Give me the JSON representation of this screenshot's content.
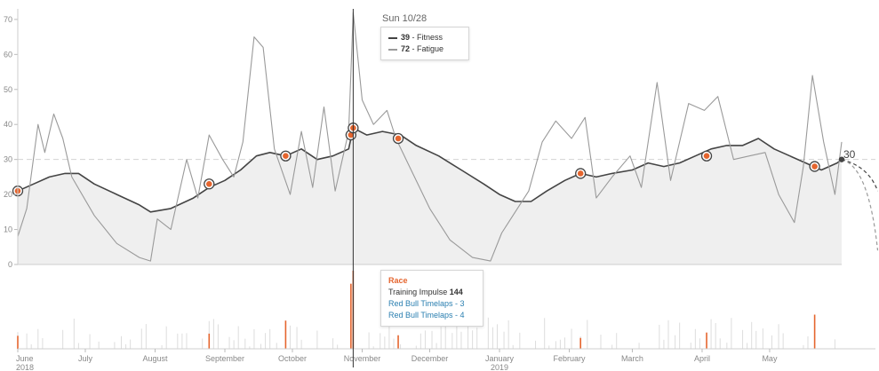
{
  "chart_data": {
    "type": "line",
    "hover_date": "Sun 10/28",
    "y_ticks": [
      0,
      10,
      20,
      30,
      40,
      50,
      60,
      70
    ],
    "ylim": [
      0,
      72
    ],
    "x_ticks": [
      {
        "label": "June",
        "sublabel": "2018",
        "date": "2018-06-01"
      },
      {
        "label": "July",
        "sublabel": "",
        "date": "2018-07-01"
      },
      {
        "label": "August",
        "sublabel": "",
        "date": "2018-08-01"
      },
      {
        "label": "September",
        "sublabel": "",
        "date": "2018-09-01"
      },
      {
        "label": "October",
        "sublabel": "",
        "date": "2018-10-01"
      },
      {
        "label": "November",
        "sublabel": "",
        "date": "2018-11-01"
      },
      {
        "label": "December",
        "sublabel": "",
        "date": "2018-12-01"
      },
      {
        "label": "January",
        "sublabel": "2019",
        "date": "2019-01-01"
      },
      {
        "label": "February",
        "sublabel": "",
        "date": "2019-02-01"
      },
      {
        "label": "March",
        "sublabel": "",
        "date": "2019-03-01"
      },
      {
        "label": "April",
        "sublabel": "",
        "date": "2019-04-01"
      },
      {
        "label": "May",
        "sublabel": "",
        "date": "2019-05-01"
      }
    ],
    "reference_line": {
      "value": 30,
      "label": "30"
    },
    "series": [
      {
        "name": "Fitness",
        "color": "#444444",
        "points": [
          [
            "2018-06-01",
            21
          ],
          [
            "2018-06-08",
            23
          ],
          [
            "2018-06-15",
            25
          ],
          [
            "2018-06-22",
            26
          ],
          [
            "2018-06-28",
            26
          ],
          [
            "2018-07-05",
            23
          ],
          [
            "2018-07-15",
            20
          ],
          [
            "2018-07-25",
            17
          ],
          [
            "2018-07-30",
            15
          ],
          [
            "2018-08-08",
            16
          ],
          [
            "2018-08-18",
            19
          ],
          [
            "2018-08-25",
            22
          ],
          [
            "2018-09-01",
            24
          ],
          [
            "2018-09-08",
            27
          ],
          [
            "2018-09-15",
            31
          ],
          [
            "2018-09-21",
            32
          ],
          [
            "2018-09-28",
            31
          ],
          [
            "2018-10-05",
            33
          ],
          [
            "2018-10-12",
            30
          ],
          [
            "2018-10-19",
            31
          ],
          [
            "2018-10-26",
            33
          ],
          [
            "2018-10-28",
            39
          ],
          [
            "2018-11-03",
            37
          ],
          [
            "2018-11-10",
            38
          ],
          [
            "2018-11-18",
            37
          ],
          [
            "2018-11-25",
            34
          ],
          [
            "2018-12-05",
            31
          ],
          [
            "2018-12-15",
            27
          ],
          [
            "2018-12-25",
            23
          ],
          [
            "2019-01-01",
            20
          ],
          [
            "2019-01-08",
            18
          ],
          [
            "2019-01-15",
            18
          ],
          [
            "2019-01-22",
            21
          ],
          [
            "2019-01-30",
            24
          ],
          [
            "2019-02-06",
            26
          ],
          [
            "2019-02-13",
            25
          ],
          [
            "2019-02-20",
            26
          ],
          [
            "2019-03-01",
            27
          ],
          [
            "2019-03-08",
            29
          ],
          [
            "2019-03-15",
            28
          ],
          [
            "2019-03-22",
            29
          ],
          [
            "2019-03-29",
            31
          ],
          [
            "2019-04-05",
            33
          ],
          [
            "2019-04-12",
            34
          ],
          [
            "2019-04-19",
            34
          ],
          [
            "2019-04-26",
            36
          ],
          [
            "2019-05-03",
            33
          ],
          [
            "2019-05-10",
            31
          ],
          [
            "2019-05-17",
            29
          ],
          [
            "2019-05-24",
            27
          ],
          [
            "2019-05-31",
            29
          ],
          [
            "2019-06-02",
            30
          ]
        ],
        "projection": [
          [
            "2019-06-02",
            30
          ],
          [
            "2019-06-18",
            21
          ]
        ]
      },
      {
        "name": "Fatigue",
        "color": "#9a9a9a",
        "points": [
          [
            "2018-06-01",
            8
          ],
          [
            "2018-06-05",
            16
          ],
          [
            "2018-06-10",
            40
          ],
          [
            "2018-06-13",
            32
          ],
          [
            "2018-06-17",
            43
          ],
          [
            "2018-06-21",
            36
          ],
          [
            "2018-06-25",
            25
          ],
          [
            "2018-07-05",
            14
          ],
          [
            "2018-07-15",
            6
          ],
          [
            "2018-07-25",
            2
          ],
          [
            "2018-07-30",
            1
          ],
          [
            "2018-08-02",
            13
          ],
          [
            "2018-08-08",
            10
          ],
          [
            "2018-08-15",
            30
          ],
          [
            "2018-08-20",
            19
          ],
          [
            "2018-08-25",
            37
          ],
          [
            "2018-08-31",
            30
          ],
          [
            "2018-09-05",
            25
          ],
          [
            "2018-09-09",
            35
          ],
          [
            "2018-09-14",
            65
          ],
          [
            "2018-09-18",
            62
          ],
          [
            "2018-09-23",
            33
          ],
          [
            "2018-09-30",
            20
          ],
          [
            "2018-10-05",
            38
          ],
          [
            "2018-10-10",
            22
          ],
          [
            "2018-10-15",
            45
          ],
          [
            "2018-10-20",
            21
          ],
          [
            "2018-10-26",
            38
          ],
          [
            "2018-10-28",
            72
          ],
          [
            "2018-11-01",
            47
          ],
          [
            "2018-11-06",
            40
          ],
          [
            "2018-11-12",
            44
          ],
          [
            "2018-11-16",
            36
          ],
          [
            "2018-11-22",
            28
          ],
          [
            "2018-12-01",
            16
          ],
          [
            "2018-12-10",
            7
          ],
          [
            "2018-12-20",
            2
          ],
          [
            "2018-12-28",
            1
          ],
          [
            "2019-01-02",
            9
          ],
          [
            "2019-01-08",
            15
          ],
          [
            "2019-01-14",
            21
          ],
          [
            "2019-01-20",
            35
          ],
          [
            "2019-01-26",
            41
          ],
          [
            "2019-02-02",
            36
          ],
          [
            "2019-02-08",
            42
          ],
          [
            "2019-02-13",
            19
          ],
          [
            "2019-02-20",
            25
          ],
          [
            "2019-02-28",
            31
          ],
          [
            "2019-03-05",
            22
          ],
          [
            "2019-03-12",
            52
          ],
          [
            "2019-03-18",
            24
          ],
          [
            "2019-03-26",
            46
          ],
          [
            "2019-04-02",
            44
          ],
          [
            "2019-04-08",
            48
          ],
          [
            "2019-04-15",
            30
          ],
          [
            "2019-04-22",
            31
          ],
          [
            "2019-04-29",
            32
          ],
          [
            "2019-05-05",
            20
          ],
          [
            "2019-05-12",
            12
          ],
          [
            "2019-05-16",
            28
          ],
          [
            "2019-05-20",
            54
          ],
          [
            "2019-05-25",
            35
          ],
          [
            "2019-05-30",
            20
          ],
          [
            "2019-06-02",
            35
          ]
        ],
        "projection": [
          [
            "2019-06-02",
            30
          ],
          [
            "2019-06-18",
            4
          ]
        ]
      }
    ],
    "race_markers": [
      {
        "date": "2018-06-01",
        "value": 21
      },
      {
        "date": "2018-08-25",
        "value": 23
      },
      {
        "date": "2018-09-28",
        "value": 31
      },
      {
        "date": "2018-10-27",
        "value": 37
      },
      {
        "date": "2018-10-28",
        "value": 39
      },
      {
        "date": "2018-11-17",
        "value": 36
      },
      {
        "date": "2019-02-06",
        "value": 26
      },
      {
        "date": "2019-04-03",
        "value": 31
      },
      {
        "date": "2019-05-21",
        "value": 28
      }
    ],
    "impulse_bars": [
      {
        "date": "2018-06-01",
        "value": 24,
        "race": true
      },
      {
        "date": "2018-08-25",
        "value": 28,
        "race": true
      },
      {
        "date": "2018-09-28",
        "value": 52,
        "race": true
      },
      {
        "date": "2018-10-27",
        "value": 120,
        "race": true
      },
      {
        "date": "2018-10-28",
        "value": 144,
        "race": true
      },
      {
        "date": "2018-11-17",
        "value": 25,
        "race": true
      },
      {
        "date": "2019-02-06",
        "value": 20,
        "race": true
      },
      {
        "date": "2019-04-03",
        "value": 30,
        "race": true
      },
      {
        "date": "2019-05-21",
        "value": 63,
        "race": true
      }
    ]
  },
  "tooltip": {
    "date": "Sun 10/28",
    "fitness_value": "39",
    "fitness_label": "- Fitness",
    "fatigue_value": "72",
    "fatigue_label": "- Fatigue"
  },
  "race_tooltip": {
    "title": "Race",
    "impulse_label": "Training Impulse",
    "impulse_value": "144",
    "activity_1": "Red Bull Timelaps - 3",
    "activity_2": "Red Bull Timelaps - 4"
  },
  "end_label": "30",
  "colors": {
    "fitness": "#444444",
    "fatigue": "#9a9a9a",
    "race": "#e5652e",
    "impulse": "#dddddd",
    "area": "#efefef",
    "grid": "#d2d2d2"
  }
}
